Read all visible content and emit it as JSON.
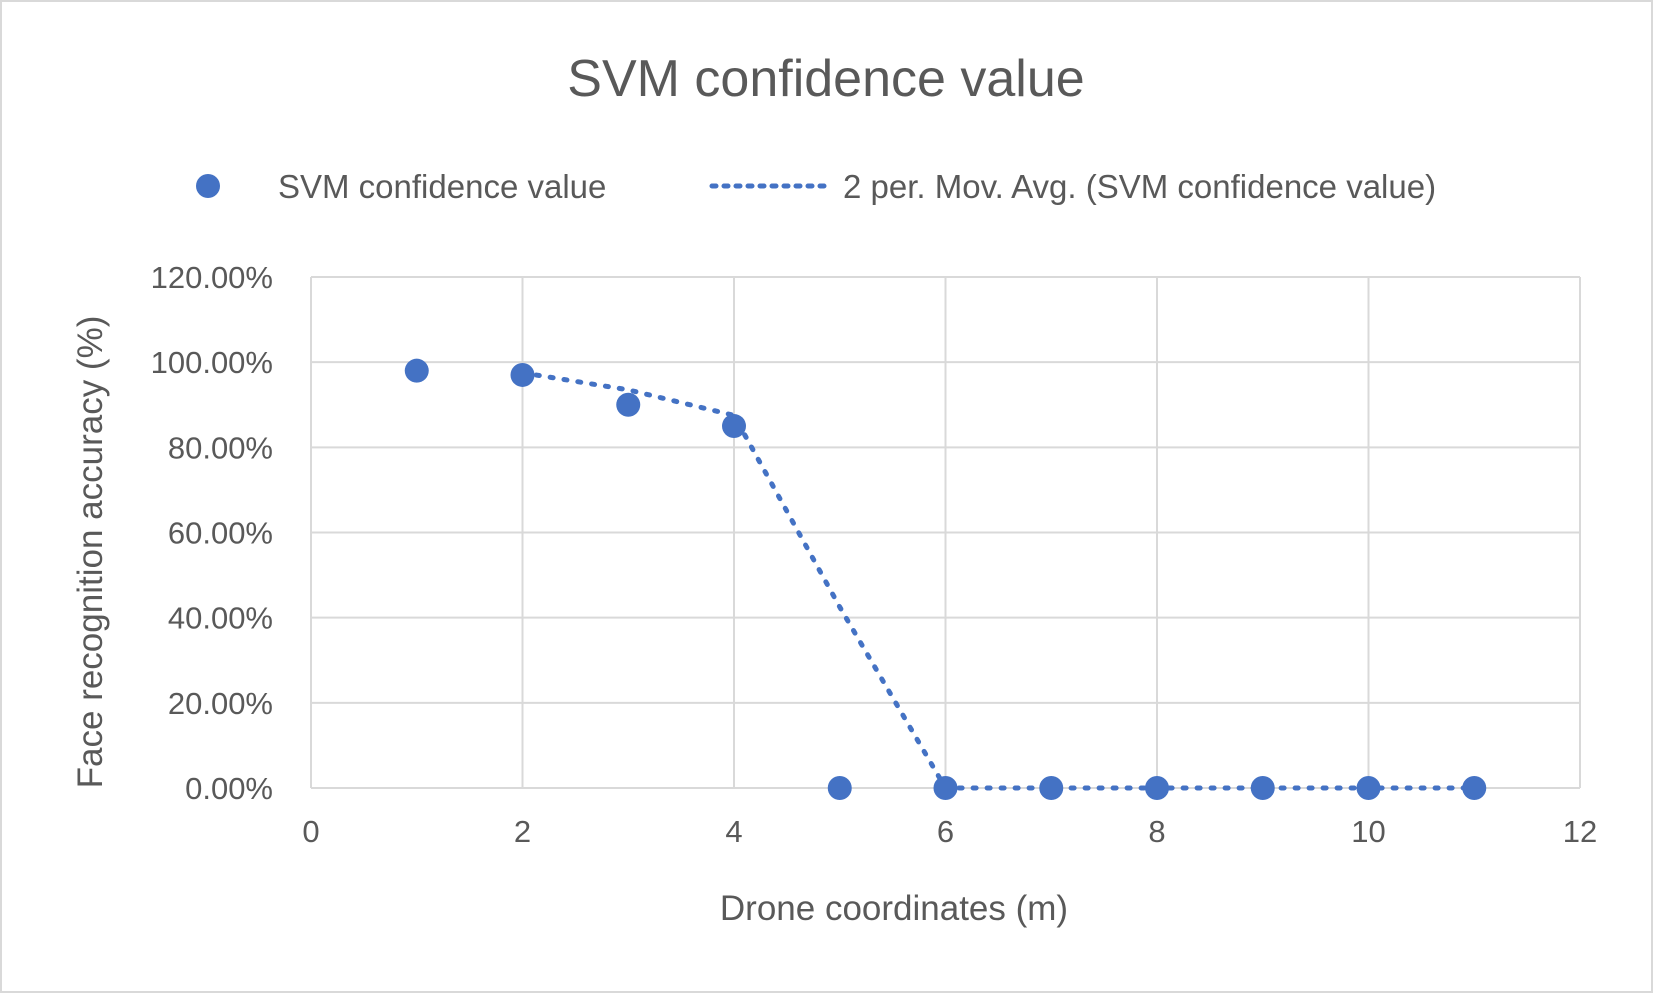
{
  "chart_data": {
    "type": "scatter",
    "title": "SVM confidence value",
    "xlabel": "Drone coordinates (m)",
    "ylabel": "Face recognition accuracy (%)",
    "xlim": [
      0,
      12
    ],
    "ylim": [
      0,
      1.2
    ],
    "x_ticks": [
      0,
      2,
      4,
      6,
      8,
      10,
      12
    ],
    "x_tick_labels": [
      "0",
      "2",
      "4",
      "6",
      "8",
      "10",
      "12"
    ],
    "y_ticks": [
      0,
      0.2,
      0.4,
      0.6,
      0.8,
      1.0,
      1.2
    ],
    "y_tick_labels": [
      "0.00%",
      "20.00%",
      "40.00%",
      "60.00%",
      "80.00%",
      "100.00%",
      "120.00%"
    ],
    "grid": true,
    "legend_position": "top",
    "series": [
      {
        "name": "SVM confidence value",
        "kind": "scatter",
        "color": "#4472C4",
        "x": [
          1,
          2,
          3,
          4,
          5,
          6,
          7,
          8,
          9,
          10,
          11
        ],
        "y": [
          0.98,
          0.97,
          0.9,
          0.85,
          0.0,
          0.0,
          0.0,
          0.0,
          0.0,
          0.0,
          0.0
        ]
      },
      {
        "name": "2 per. Mov. Avg. (SVM confidence value)",
        "kind": "trendline-dotted",
        "color": "#4472C4",
        "x": [
          2,
          3,
          4,
          5,
          6,
          7,
          8,
          9,
          10,
          11
        ],
        "y": [
          0.975,
          0.935,
          0.875,
          0.425,
          0.0,
          0.0,
          0.0,
          0.0,
          0.0,
          0.0
        ]
      }
    ]
  }
}
